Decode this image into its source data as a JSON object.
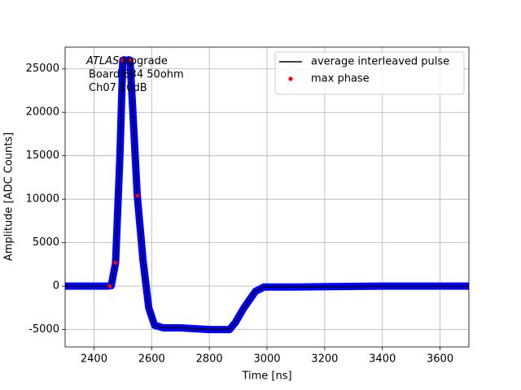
{
  "chart_data": {
    "type": "line",
    "xlabel": "Time [ns]",
    "ylabel": "Amplitude [ADC Counts]",
    "annotation": {
      "italic": "ATLAS",
      "rest": "Upgrade",
      "lines": [
        "Board 634 50ohm",
        "Ch07 10dB"
      ]
    },
    "x": [
      2300,
      2450,
      2460,
      2475,
      2490,
      2500,
      2525,
      2535,
      2550,
      2570,
      2590,
      2610,
      2640,
      2700,
      2800,
      2870,
      2890,
      2920,
      2960,
      2990,
      3100,
      3400,
      3700
    ],
    "series": [
      {
        "color": "#0000ff",
        "values": [
          0,
          0,
          50,
          2700,
          15000,
          26000,
          26000,
          20000,
          10500,
          3000,
          -2500,
          -4500,
          -4800,
          -4800,
          -5000,
          -5000,
          -4200,
          -2500,
          -600,
          -100,
          -100,
          0,
          0
        ]
      },
      {
        "name": "average interleaved pulse",
        "color": "#000000",
        "values": [
          0,
          0,
          50,
          2700,
          15000,
          26000,
          26000,
          20000,
          10500,
          3000,
          -2500,
          -4500,
          -4800,
          -4800,
          -5000,
          -5000,
          -4200,
          -2500,
          -600,
          -100,
          -100,
          0,
          0
        ]
      },
      {
        "name": "max phase",
        "type": "scatter",
        "color": "#ff0000",
        "x": [
          2455,
          2475,
          2500,
          2528,
          2551
        ],
        "values": [
          0,
          2700,
          26000,
          26000,
          10400
        ]
      }
    ],
    "xlim": [
      2300,
      3700
    ],
    "xticks": [
      2400,
      2600,
      2800,
      3000,
      3200,
      3400,
      3600
    ],
    "ylim": [
      -7000,
      27500
    ],
    "yticks": [
      -5000,
      0,
      5000,
      10000,
      15000,
      20000,
      25000
    ],
    "grid": true,
    "legend": "upper right"
  }
}
